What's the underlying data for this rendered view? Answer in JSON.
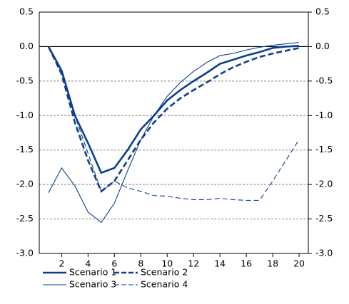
{
  "chart_data": {
    "type": "line",
    "x": [
      1,
      2,
      3,
      4,
      5,
      6,
      7,
      8,
      9,
      10,
      11,
      12,
      13,
      14,
      15,
      16,
      17,
      18,
      19,
      20
    ],
    "xlim": [
      0.3,
      20.7
    ],
    "xticks": [
      2,
      4,
      6,
      8,
      10,
      12,
      14,
      16,
      18,
      20
    ],
    "ylim": [
      -3,
      0.5
    ],
    "yticks": [
      0.5,
      {
        "value": 0,
        "label": "0.0"
      },
      -0.5,
      {
        "value": -1,
        "label": "-1.0"
      },
      -1.5,
      {
        "value": -2,
        "label": "-2.0"
      },
      -2.5,
      {
        "value": -3,
        "label": "-3.0"
      }
    ],
    "y2lim": [
      -3,
      0.5
    ],
    "y2ticks": [
      0.5,
      {
        "value": 0,
        "label": "0.0"
      },
      -0.5,
      {
        "value": -1,
        "label": "-1.0"
      },
      -1.5,
      {
        "value": -2,
        "label": "-2.0"
      },
      -2.5,
      {
        "value": -3,
        "label": "-3.0"
      }
    ],
    "grid": true,
    "series": [
      {
        "name": "Scenario 1",
        "color": "#0d3f8c",
        "linewidth": 2.6,
        "dashed": false,
        "values": [
          0,
          -0.35,
          -1.0,
          -1.4,
          -1.83,
          -1.76,
          -1.5,
          -1.2,
          -1.0,
          -0.78,
          -0.63,
          -0.5,
          -0.38,
          -0.25,
          -0.19,
          -0.13,
          -0.08,
          -0.02,
          0.0,
          0.01
        ]
      },
      {
        "name": "Scenario 2",
        "color": "#0d3f8c",
        "linewidth": 2.6,
        "dashed": true,
        "values": [
          0,
          -0.4,
          -1.1,
          -1.65,
          -2.1,
          -1.95,
          -1.65,
          -1.35,
          -1.1,
          -0.9,
          -0.75,
          -0.63,
          -0.52,
          -0.4,
          -0.3,
          -0.22,
          -0.15,
          -0.1,
          -0.06,
          -0.02
        ]
      },
      {
        "name": "Scenario 3",
        "color": "#0d3f8c",
        "linewidth": 1.1,
        "dashed": false,
        "values": [
          -2.12,
          -1.76,
          -2.02,
          -2.4,
          -2.55,
          -2.27,
          -1.8,
          -1.35,
          -1.0,
          -0.72,
          -0.52,
          -0.36,
          -0.23,
          -0.13,
          -0.1,
          -0.05,
          -0.01,
          0.02,
          0.04,
          0.06
        ]
      },
      {
        "name": "Scenario 4",
        "color": "#0d3f8c",
        "linewidth": 1.1,
        "dashed": true,
        "values": [
          0,
          -0.38,
          -1.0,
          -1.55,
          -2.1,
          -1.95,
          -2.05,
          -2.1,
          -2.16,
          -2.17,
          -2.2,
          -2.22,
          -2.22,
          -2.2,
          -2.22,
          -2.23,
          -2.23,
          -1.95,
          -1.65,
          -1.35
        ]
      }
    ]
  }
}
